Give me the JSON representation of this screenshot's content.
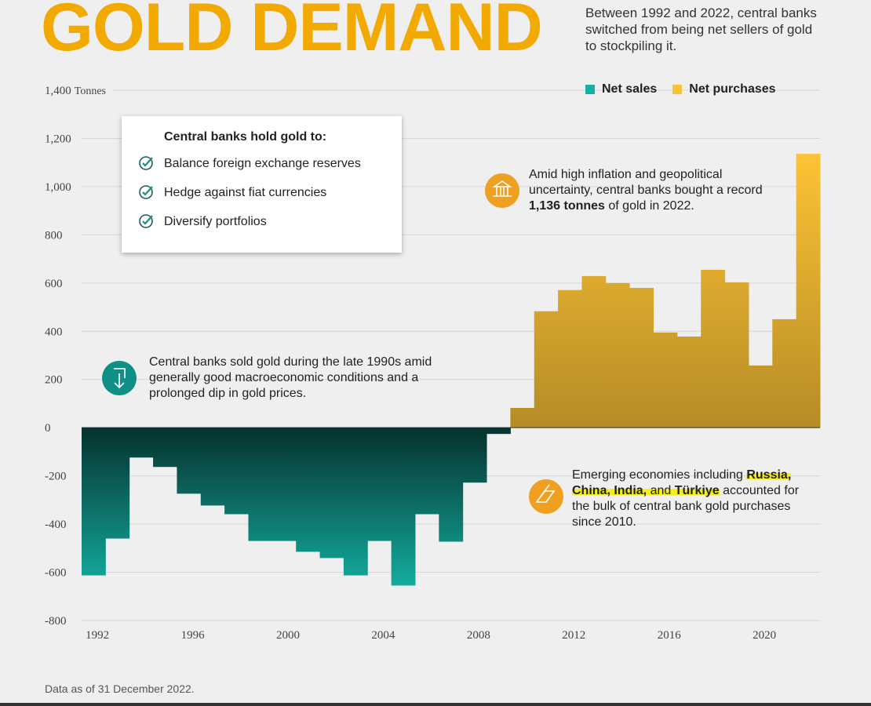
{
  "chart_data": {
    "type": "bar",
    "title": "GOLD DEMAND",
    "subtitle": "Between 1992 and 2022, central banks switched from being net sellers of gold to stockpiling it.",
    "note": "Data as of 31 December 2022.",
    "y_unit": "Tonnes",
    "x": [
      1992,
      1993,
      1994,
      1995,
      1996,
      1997,
      1998,
      1999,
      2000,
      2001,
      2002,
      2003,
      2004,
      2005,
      2006,
      2007,
      2008,
      2009,
      2010,
      2011,
      2012,
      2013,
      2014,
      2015,
      2016,
      2017,
      2018,
      2019,
      2020,
      2021,
      2022
    ],
    "series": [
      {
        "name": "Net sales",
        "color": "#14b0a2",
        "values": [
          -613,
          -460,
          -124,
          -163,
          -274,
          -323,
          -359,
          -470,
          -470,
          -515,
          -541,
          -613,
          -470,
          -655,
          -359,
          -473,
          -228,
          -26,
          null,
          null,
          null,
          null,
          null,
          null,
          null,
          null,
          null,
          null,
          null,
          null,
          null
        ]
      },
      {
        "name": "Net purchases",
        "color": "#fcc235",
        "values": [
          null,
          null,
          null,
          null,
          null,
          null,
          null,
          null,
          null,
          null,
          null,
          null,
          null,
          null,
          null,
          null,
          null,
          null,
          82,
          483,
          571,
          629,
          600,
          580,
          395,
          378,
          655,
          603,
          258,
          450,
          1136
        ]
      }
    ],
    "xlim": [
      1991.5,
      2022.5
    ],
    "xticks": [
      1992,
      1996,
      2000,
      2004,
      2008,
      2012,
      2016,
      2020
    ],
    "ylim": [
      -800,
      1400
    ],
    "yticks": [
      -800,
      -600,
      -400,
      -200,
      0,
      200,
      400,
      600,
      800,
      {
        "value": 1000,
        "label": "1,000"
      },
      {
        "value": 1200,
        "label": "1,200"
      },
      {
        "value": 1400,
        "label": "1,400"
      }
    ],
    "grid": true,
    "legend": "top-right",
    "callout": {
      "heading": "Central banks hold gold to:",
      "items": [
        "Balance foreign exchange reserves",
        "Hedge against fiat currencies",
        "Diversify portfolios"
      ]
    },
    "annotations": [
      {
        "parts": [
          {
            "text": "Amid high inflation and geopolitical uncertainty, central banks bought a record ",
            "bold": false
          },
          {
            "text": "1,136 tonnes",
            "bold": true
          },
          {
            "text": " of gold in 2022.",
            "bold": false
          }
        ]
      },
      {
        "parts": [
          {
            "text": "Central banks sold gold during the late 1990s amid generally good macroeconomic conditions and a prolonged dip in gold prices.",
            "bold": false
          }
        ]
      },
      {
        "parts": [
          {
            "text": "Emerging economies including ",
            "bold": false
          },
          {
            "text": "Russia, China, India,",
            "bold": true,
            "highlight": true
          },
          {
            "text": " and ",
            "bold": false,
            "highlight": true
          },
          {
            "text": "Türkiye",
            "bold": true,
            "highlight": true
          },
          {
            "text": " accounted for the bulk of central bank gold purchases since 2010.",
            "bold": false
          }
        ]
      }
    ]
  }
}
